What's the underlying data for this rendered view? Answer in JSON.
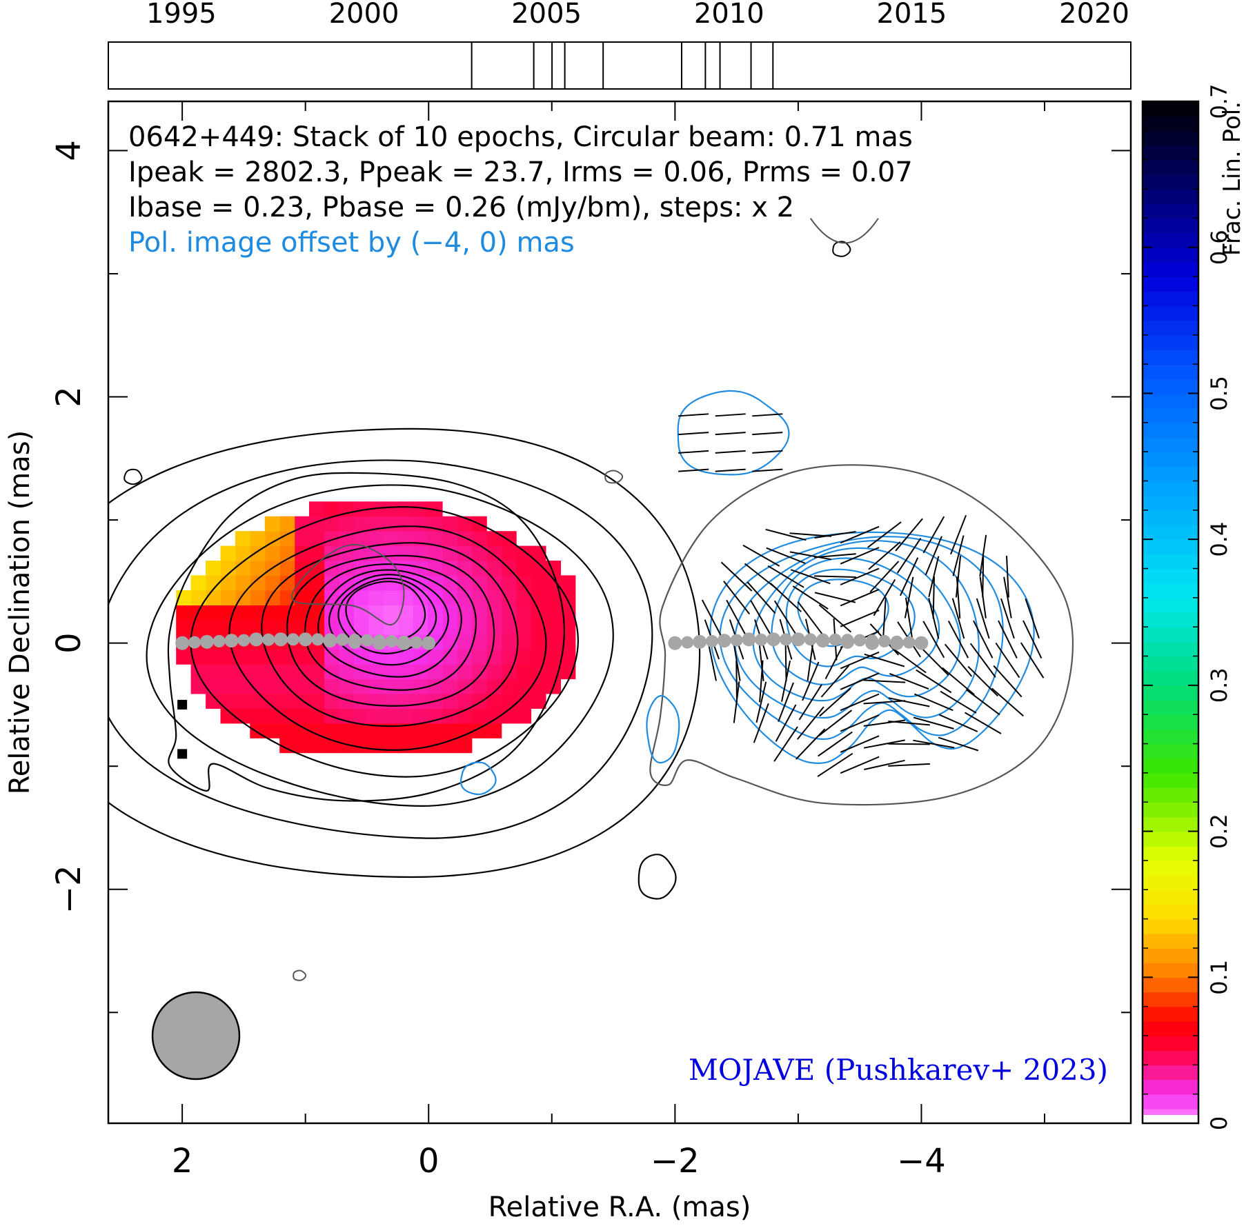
{
  "chart_data": {
    "type": "heatmap",
    "colors": {
      "total_intensity_contours": "#000000",
      "low_contour": "#555555",
      "pol_contours": "#1f8be0",
      "ridge": "#a6a6a6",
      "beam": "#a6a6a6",
      "annotation_blue": "#1f8be0",
      "credit": "#0000dd"
    },
    "header_lines": [
      "0642+449: Stack of 10 epochs, Circular beam: 0.71 mas",
      "Ipeak = 2802.3, Ppeak = 23.7, Irms = 0.06, Prms = 0.07",
      "Ibase = 0.23, Pbase = 0.26 (mJy/bm), steps: x 2"
    ],
    "offset_note": "Pol. image offset by (−4, 0) mas",
    "credit": "MOJAVE (Pushkarev+ 2023)",
    "x_axis": {
      "label": "Relative R.A. (mas)",
      "range": [
        2.6,
        -5.7
      ],
      "ticks": [
        2,
        0,
        -2,
        -4
      ],
      "tick_labels": [
        "2",
        "0",
        "−2",
        "−4"
      ],
      "minor_step": 1
    },
    "y_axis": {
      "label": "Relative Declination (mas)",
      "range": [
        -3.9,
        4.4
      ],
      "ticks": [
        -2,
        0,
        2,
        4
      ],
      "tick_labels": [
        "−2",
        "0",
        "2",
        "4"
      ],
      "minor_step": 1
    },
    "epoch_bar": {
      "range": [
        1993.0,
        2021.0
      ],
      "ticks": [
        1995,
        2000,
        2005,
        2010,
        2015,
        2020
      ],
      "tick_labels": [
        "1995",
        "2000",
        "2005",
        "2010",
        "2015",
        "2020"
      ],
      "epochs": [
        2002.95,
        2004.65,
        2005.15,
        2005.5,
        2006.55,
        2008.7,
        2009.35,
        2009.75,
        2010.6,
        2011.2
      ]
    },
    "colorbar": {
      "label": "Frac. Lin. Pol.",
      "range": [
        0,
        0.7
      ],
      "ticks": [
        0,
        0.1,
        0.2,
        0.3,
        0.4,
        0.5,
        0.6,
        0.7
      ],
      "tick_labels": [
        "0",
        "0.1",
        "0.2",
        "0.3",
        "0.4",
        "0.5",
        "0.6",
        "0.7"
      ]
    },
    "beam_mas": 0.71,
    "ridge_points": [
      [
        2,
        0
      ],
      [
        1.8,
        0.01
      ],
      [
        1.6,
        0.02
      ],
      [
        1.4,
        0.03
      ],
      [
        1.2,
        0.03
      ],
      [
        1.0,
        0.03
      ],
      [
        0.8,
        0.02
      ],
      [
        0.6,
        0.01
      ],
      [
        0.4,
        0.0
      ],
      [
        0.2,
        0.0
      ],
      [
        0.0,
        0.0
      ]
    ],
    "stokes_i_core": {
      "center": [
        0.35,
        0.25
      ],
      "peak_radius": [
        0.32,
        0.25
      ],
      "levels": 12,
      "step_factor": 1.2
    },
    "frac_pol_region": {
      "center": [
        0.4,
        0.1
      ],
      "radius": [
        1.65,
        1.05
      ],
      "value_range": [
        0.0,
        0.15
      ]
    },
    "pol_offset_mas": -4
  }
}
